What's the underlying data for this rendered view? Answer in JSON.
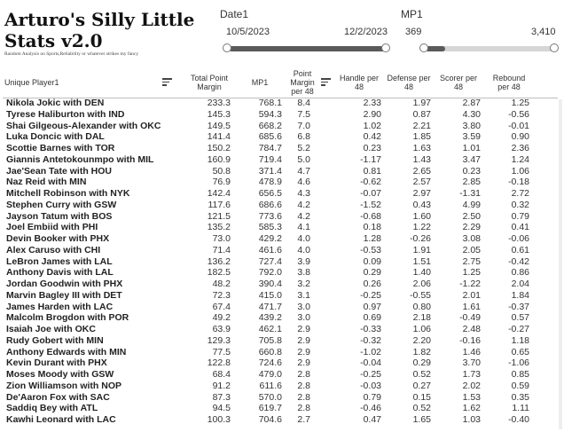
{
  "title": "Arturo's Silly Little Stats v2.0",
  "subtitle": "Random Analysis on Sports,Reliability or whatever strikes my fancy",
  "filters": {
    "date": {
      "label": "Date1",
      "start": "10/5/2023",
      "end": "12/2/2023"
    },
    "mp": {
      "label": "MP1",
      "min": "369",
      "max": "3,410"
    }
  },
  "columns": {
    "player": "Unique Player1",
    "total_point_margin": "Total Point Margin",
    "mp": "MP1",
    "point_margin_per48": "Point Margin per 48",
    "handle_per48": "Handle per 48",
    "defense_per48": "Defense per 48",
    "scorer_per48": "Scorer per 48",
    "rebound_per48": "Rebound per 48"
  },
  "rows": [
    {
      "player": "Nikola Jokic with DEN",
      "tpm": "233.3",
      "mp": "768.1",
      "pm48": "8.4",
      "handle": "2.33",
      "defense": "1.97",
      "scorer": "2.87",
      "rebound": "1.25"
    },
    {
      "player": "Tyrese Haliburton with IND",
      "tpm": "145.3",
      "mp": "594.3",
      "pm48": "7.5",
      "handle": "2.90",
      "defense": "0.87",
      "scorer": "4.30",
      "rebound": "-0.56"
    },
    {
      "player": "Shai Gilgeous-Alexander with OKC",
      "tpm": "149.5",
      "mp": "668.2",
      "pm48": "7.0",
      "handle": "1.02",
      "defense": "2.21",
      "scorer": "3.80",
      "rebound": "-0.01"
    },
    {
      "player": "Luka Doncic with DAL",
      "tpm": "141.4",
      "mp": "685.6",
      "pm48": "6.8",
      "handle": "0.42",
      "defense": "1.85",
      "scorer": "3.59",
      "rebound": "0.90"
    },
    {
      "player": "Scottie Barnes with TOR",
      "tpm": "150.2",
      "mp": "784.7",
      "pm48": "5.2",
      "handle": "0.23",
      "defense": "1.63",
      "scorer": "1.01",
      "rebound": "2.36"
    },
    {
      "player": "Giannis Antetokounmpo with MIL",
      "tpm": "160.9",
      "mp": "719.4",
      "pm48": "5.0",
      "handle": "-1.17",
      "defense": "1.43",
      "scorer": "3.47",
      "rebound": "1.24"
    },
    {
      "player": "Jae'Sean Tate with HOU",
      "tpm": "50.8",
      "mp": "371.4",
      "pm48": "4.7",
      "handle": "0.81",
      "defense": "2.65",
      "scorer": "0.23",
      "rebound": "1.06"
    },
    {
      "player": "Naz Reid with MIN",
      "tpm": "76.9",
      "mp": "478.9",
      "pm48": "4.6",
      "handle": "-0.62",
      "defense": "2.57",
      "scorer": "2.85",
      "rebound": "-0.18"
    },
    {
      "player": "Mitchell Robinson with NYK",
      "tpm": "142.4",
      "mp": "656.5",
      "pm48": "4.3",
      "handle": "-0.07",
      "defense": "2.97",
      "scorer": "-1.31",
      "rebound": "2.72"
    },
    {
      "player": "Stephen Curry with GSW",
      "tpm": "117.6",
      "mp": "686.6",
      "pm48": "4.2",
      "handle": "-1.52",
      "defense": "0.43",
      "scorer": "4.99",
      "rebound": "0.32"
    },
    {
      "player": "Jayson Tatum with BOS",
      "tpm": "121.5",
      "mp": "773.6",
      "pm48": "4.2",
      "handle": "-0.68",
      "defense": "1.60",
      "scorer": "2.50",
      "rebound": "0.79"
    },
    {
      "player": "Joel Embiid with PHI",
      "tpm": "135.2",
      "mp": "585.3",
      "pm48": "4.1",
      "handle": "0.18",
      "defense": "1.22",
      "scorer": "2.29",
      "rebound": "0.41"
    },
    {
      "player": "Devin Booker with PHX",
      "tpm": "73.0",
      "mp": "429.2",
      "pm48": "4.0",
      "handle": "1.28",
      "defense": "-0.26",
      "scorer": "3.08",
      "rebound": "-0.06"
    },
    {
      "player": "Alex Caruso with CHI",
      "tpm": "71.4",
      "mp": "461.6",
      "pm48": "4.0",
      "handle": "-0.53",
      "defense": "1.91",
      "scorer": "2.05",
      "rebound": "0.61"
    },
    {
      "player": "LeBron James with LAL",
      "tpm": "136.2",
      "mp": "727.4",
      "pm48": "3.9",
      "handle": "0.09",
      "defense": "1.51",
      "scorer": "2.75",
      "rebound": "-0.42"
    },
    {
      "player": "Anthony Davis with LAL",
      "tpm": "182.5",
      "mp": "792.0",
      "pm48": "3.8",
      "handle": "0.29",
      "defense": "1.40",
      "scorer": "1.25",
      "rebound": "0.86"
    },
    {
      "player": "Jordan Goodwin with PHX",
      "tpm": "48.2",
      "mp": "390.4",
      "pm48": "3.2",
      "handle": "0.26",
      "defense": "2.06",
      "scorer": "-1.22",
      "rebound": "2.04"
    },
    {
      "player": "Marvin Bagley III with DET",
      "tpm": "72.3",
      "mp": "415.0",
      "pm48": "3.1",
      "handle": "-0.25",
      "defense": "-0.55",
      "scorer": "2.01",
      "rebound": "1.84"
    },
    {
      "player": "James Harden with LAC",
      "tpm": "67.4",
      "mp": "471.7",
      "pm48": "3.0",
      "handle": "0.97",
      "defense": "0.80",
      "scorer": "1.61",
      "rebound": "-0.37"
    },
    {
      "player": "Malcolm Brogdon with POR",
      "tpm": "49.2",
      "mp": "439.2",
      "pm48": "3.0",
      "handle": "0.69",
      "defense": "2.18",
      "scorer": "-0.49",
      "rebound": "0.57"
    },
    {
      "player": "Isaiah Joe with OKC",
      "tpm": "63.9",
      "mp": "462.1",
      "pm48": "2.9",
      "handle": "-0.33",
      "defense": "1.06",
      "scorer": "2.48",
      "rebound": "-0.27"
    },
    {
      "player": "Rudy Gobert with MIN",
      "tpm": "129.3",
      "mp": "705.8",
      "pm48": "2.9",
      "handle": "-0.32",
      "defense": "2.20",
      "scorer": "-0.16",
      "rebound": "1.18"
    },
    {
      "player": "Anthony Edwards with MIN",
      "tpm": "77.5",
      "mp": "660.8",
      "pm48": "2.9",
      "handle": "-1.02",
      "defense": "1.82",
      "scorer": "1.46",
      "rebound": "0.65"
    },
    {
      "player": "Kevin Durant with PHX",
      "tpm": "122.8",
      "mp": "724.6",
      "pm48": "2.9",
      "handle": "-0.04",
      "defense": "0.29",
      "scorer": "3.70",
      "rebound": "-1.06"
    },
    {
      "player": "Moses Moody with GSW",
      "tpm": "68.4",
      "mp": "479.0",
      "pm48": "2.8",
      "handle": "-0.25",
      "defense": "0.52",
      "scorer": "1.73",
      "rebound": "0.85"
    },
    {
      "player": "Zion Williamson with NOP",
      "tpm": "91.2",
      "mp": "611.6",
      "pm48": "2.8",
      "handle": "-0.03",
      "defense": "0.27",
      "scorer": "2.02",
      "rebound": "0.59"
    },
    {
      "player": "De'Aaron Fox with SAC",
      "tpm": "87.3",
      "mp": "570.0",
      "pm48": "2.8",
      "handle": "0.79",
      "defense": "0.15",
      "scorer": "1.53",
      "rebound": "0.35"
    },
    {
      "player": "Saddiq Bey with ATL",
      "tpm": "94.5",
      "mp": "619.7",
      "pm48": "2.8",
      "handle": "-0.46",
      "defense": "0.52",
      "scorer": "1.62",
      "rebound": "1.11"
    },
    {
      "player": "Kawhi Leonard with LAC",
      "tpm": "100.3",
      "mp": "704.6",
      "pm48": "2.7",
      "handle": "0.47",
      "defense": "1.65",
      "scorer": "1.03",
      "rebound": "-0.40"
    }
  ]
}
